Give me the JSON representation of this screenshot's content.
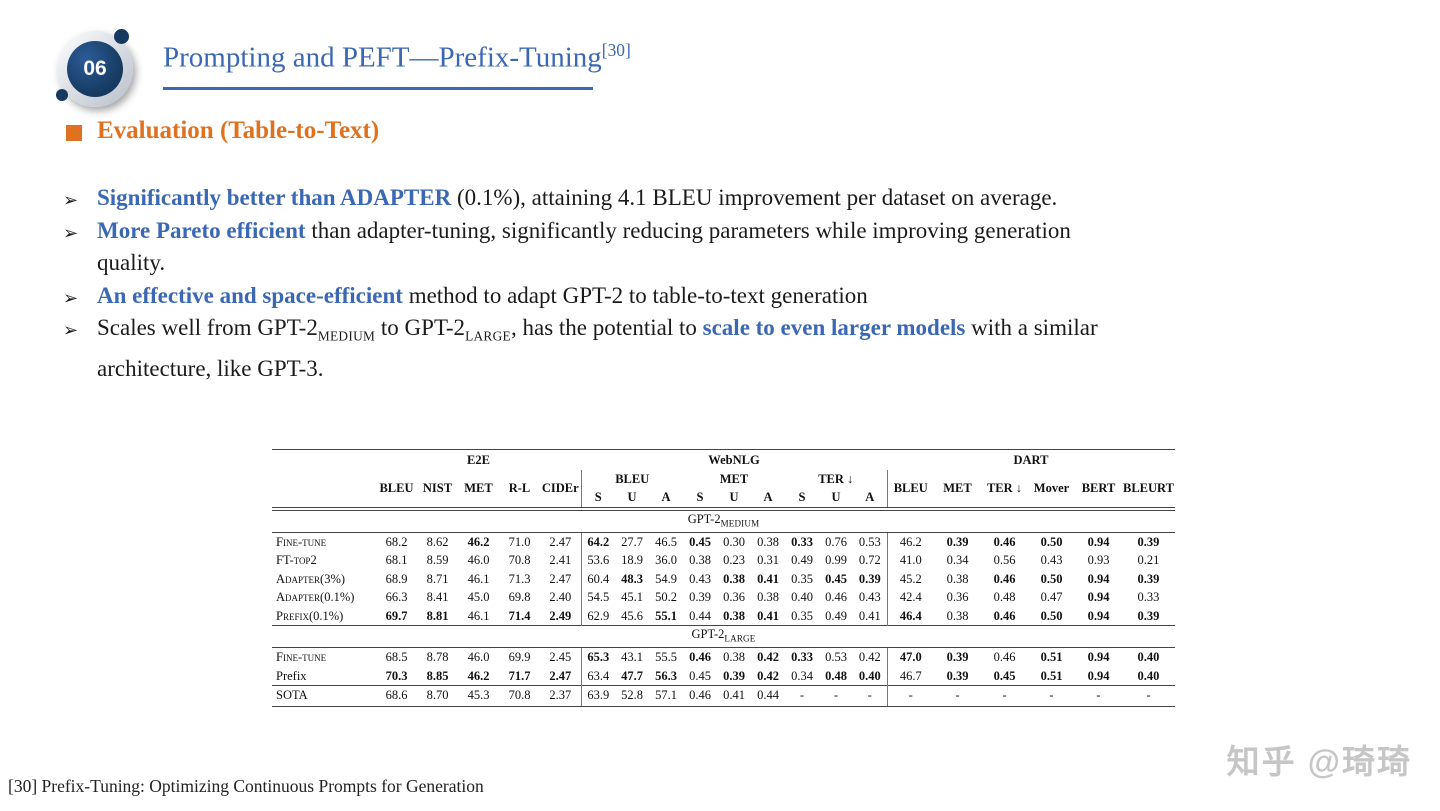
{
  "slide": {
    "badge_number": "06",
    "title": "Prompting and PEFT—Prefix-Tuning",
    "title_ref": "[30]",
    "section_heading": "Evaluation (Table-to-Text)",
    "bullet_marker": "➢",
    "bullets": [
      {
        "segments": [
          {
            "t": "Significantly better than ADAPTER",
            "s": "b"
          },
          {
            "t": " (0.1%), attaining 4.1 BLEU improvement per dataset on average.",
            "s": "n"
          }
        ]
      },
      {
        "segments": [
          {
            "t": "More Pareto efficient",
            "s": "b"
          },
          {
            "t": " than adapter-tuning, significantly reducing parameters while improving generation",
            "s": "n"
          },
          {
            "t": "",
            "s": "br"
          },
          {
            "t": "quality.",
            "s": "n"
          }
        ]
      },
      {
        "segments": [
          {
            "t": "An effective and space-efficient",
            "s": "b"
          },
          {
            "t": " method to adapt GPT-2 to table-to-text generation",
            "s": "n"
          }
        ]
      },
      {
        "segments": [
          {
            "t": "Scales well from GPT-2",
            "s": "n"
          },
          {
            "t": "MEDIUM",
            "s": "sub"
          },
          {
            "t": " to GPT-2",
            "s": "n"
          },
          {
            "t": "LARGE",
            "s": "sub"
          },
          {
            "t": ", has the potential to ",
            "s": "n"
          },
          {
            "t": "scale to even larger models",
            "s": "b"
          },
          {
            "t": " with a similar",
            "s": "n"
          },
          {
            "t": "",
            "s": "br"
          },
          {
            "t": "architecture, like GPT-3.",
            "s": "n"
          }
        ]
      }
    ],
    "footnote": "[30] Prefix-Tuning: Optimizing Continuous Prompts for Generation",
    "watermark": "知乎 @琦琦"
  },
  "colors": {
    "accent_blue": "#3b68b4",
    "orange": "#e0711f",
    "badge_navy": "#16395f",
    "watermark_gray": "#c6c6c6"
  },
  "table": {
    "groups": [
      {
        "label": "E2E",
        "span": 5
      },
      {
        "label": "WebNLG",
        "span": 9
      },
      {
        "label": "DART",
        "span": 6
      }
    ],
    "e2e_cols": [
      "BLEU",
      "NIST",
      "MET",
      "R-L",
      "CIDEr"
    ],
    "webnlg_groups": [
      "BLEU",
      "MET",
      "TER ↓"
    ],
    "webnlg_sub": [
      "S",
      "U",
      "A",
      "S",
      "U",
      "A",
      "S",
      "U",
      "A"
    ],
    "dart_cols": [
      "BLEU",
      "MET",
      "TER ↓",
      "Mover",
      "BERT",
      "BLEURT"
    ],
    "sections": [
      {
        "title": "GPT-2",
        "title_sub": "MEDIUM",
        "double_rule_above": true,
        "rows": [
          {
            "label": "Fine-tune",
            "sc": true,
            "cells": [
              "68.2",
              "8.62",
              "46.2",
              "71.0",
              "2.47",
              "64.2",
              "27.7",
              "46.5",
              "0.45",
              "0.30",
              "0.38",
              "0.33",
              "0.76",
              "0.53",
              "46.2",
              "0.39",
              "0.46",
              "0.50",
              "0.94",
              "0.39"
            ],
            "bold": [
              2,
              5,
              8,
              11,
              15,
              16,
              17,
              18,
              19
            ]
          },
          {
            "label": "FT-top2",
            "sc": true,
            "cells": [
              "68.1",
              "8.59",
              "46.0",
              "70.8",
              "2.41",
              "53.6",
              "18.9",
              "36.0",
              "0.38",
              "0.23",
              "0.31",
              "0.49",
              "0.99",
              "0.72",
              "41.0",
              "0.34",
              "0.56",
              "0.43",
              "0.93",
              "0.21"
            ],
            "bold": []
          },
          {
            "label": "Adapter(3%)",
            "sc": true,
            "cells": [
              "68.9",
              "8.71",
              "46.1",
              "71.3",
              "2.47",
              "60.4",
              "48.3",
              "54.9",
              "0.43",
              "0.38",
              "0.41",
              "0.35",
              "0.45",
              "0.39",
              "45.2",
              "0.38",
              "0.46",
              "0.50",
              "0.94",
              "0.39"
            ],
            "bold": [
              6,
              9,
              10,
              12,
              13,
              16,
              17,
              18,
              19
            ]
          },
          {
            "label": "Adapter(0.1%)",
            "sc": true,
            "cells": [
              "66.3",
              "8.41",
              "45.0",
              "69.8",
              "2.40",
              "54.5",
              "45.1",
              "50.2",
              "0.39",
              "0.36",
              "0.38",
              "0.40",
              "0.46",
              "0.43",
              "42.4",
              "0.36",
              "0.48",
              "0.47",
              "0.94",
              "0.33"
            ],
            "bold": [
              18
            ]
          },
          {
            "label": "Prefix(0.1%)",
            "sc": true,
            "cells": [
              "69.7",
              "8.81",
              "46.1",
              "71.4",
              "2.49",
              "62.9",
              "45.6",
              "55.1",
              "0.44",
              "0.38",
              "0.41",
              "0.35",
              "0.49",
              "0.41",
              "46.4",
              "0.38",
              "0.46",
              "0.50",
              "0.94",
              "0.39"
            ],
            "bold": [
              0,
              1,
              3,
              4,
              7,
              9,
              10,
              14,
              16,
              17,
              18,
              19
            ]
          }
        ]
      },
      {
        "title": "GPT-2",
        "title_sub": "LARGE",
        "rows": [
          {
            "label": "Fine-tune",
            "sc": true,
            "cells": [
              "68.5",
              "8.78",
              "46.0",
              "69.9",
              "2.45",
              "65.3",
              "43.1",
              "55.5",
              "0.46",
              "0.38",
              "0.42",
              "0.33",
              "0.53",
              "0.42",
              "47.0",
              "0.39",
              "0.46",
              "0.51",
              "0.94",
              "0.40"
            ],
            "bold": [
              5,
              8,
              10,
              11,
              14,
              15,
              17,
              18,
              19
            ]
          },
          {
            "label": "Prefix",
            "sc": false,
            "cells": [
              "70.3",
              "8.85",
              "46.2",
              "71.7",
              "2.47",
              "63.4",
              "47.7",
              "56.3",
              "0.45",
              "0.39",
              "0.42",
              "0.34",
              "0.48",
              "0.40",
              "46.7",
              "0.39",
              "0.45",
              "0.51",
              "0.94",
              "0.40"
            ],
            "bold": [
              0,
              1,
              2,
              3,
              4,
              6,
              7,
              9,
              10,
              12,
              13,
              15,
              16,
              17,
              18,
              19
            ]
          }
        ]
      },
      {
        "title": null,
        "rows": [
          {
            "label": "SOTA",
            "sc": false,
            "cells": [
              "68.6",
              "8.70",
              "45.3",
              "70.8",
              "2.37",
              "63.9",
              "52.8",
              "57.1",
              "0.46",
              "0.41",
              "0.44",
              "-",
              "-",
              "-",
              "-",
              "-",
              "-",
              "-",
              "-",
              "-"
            ],
            "bold": []
          }
        ]
      }
    ]
  }
}
